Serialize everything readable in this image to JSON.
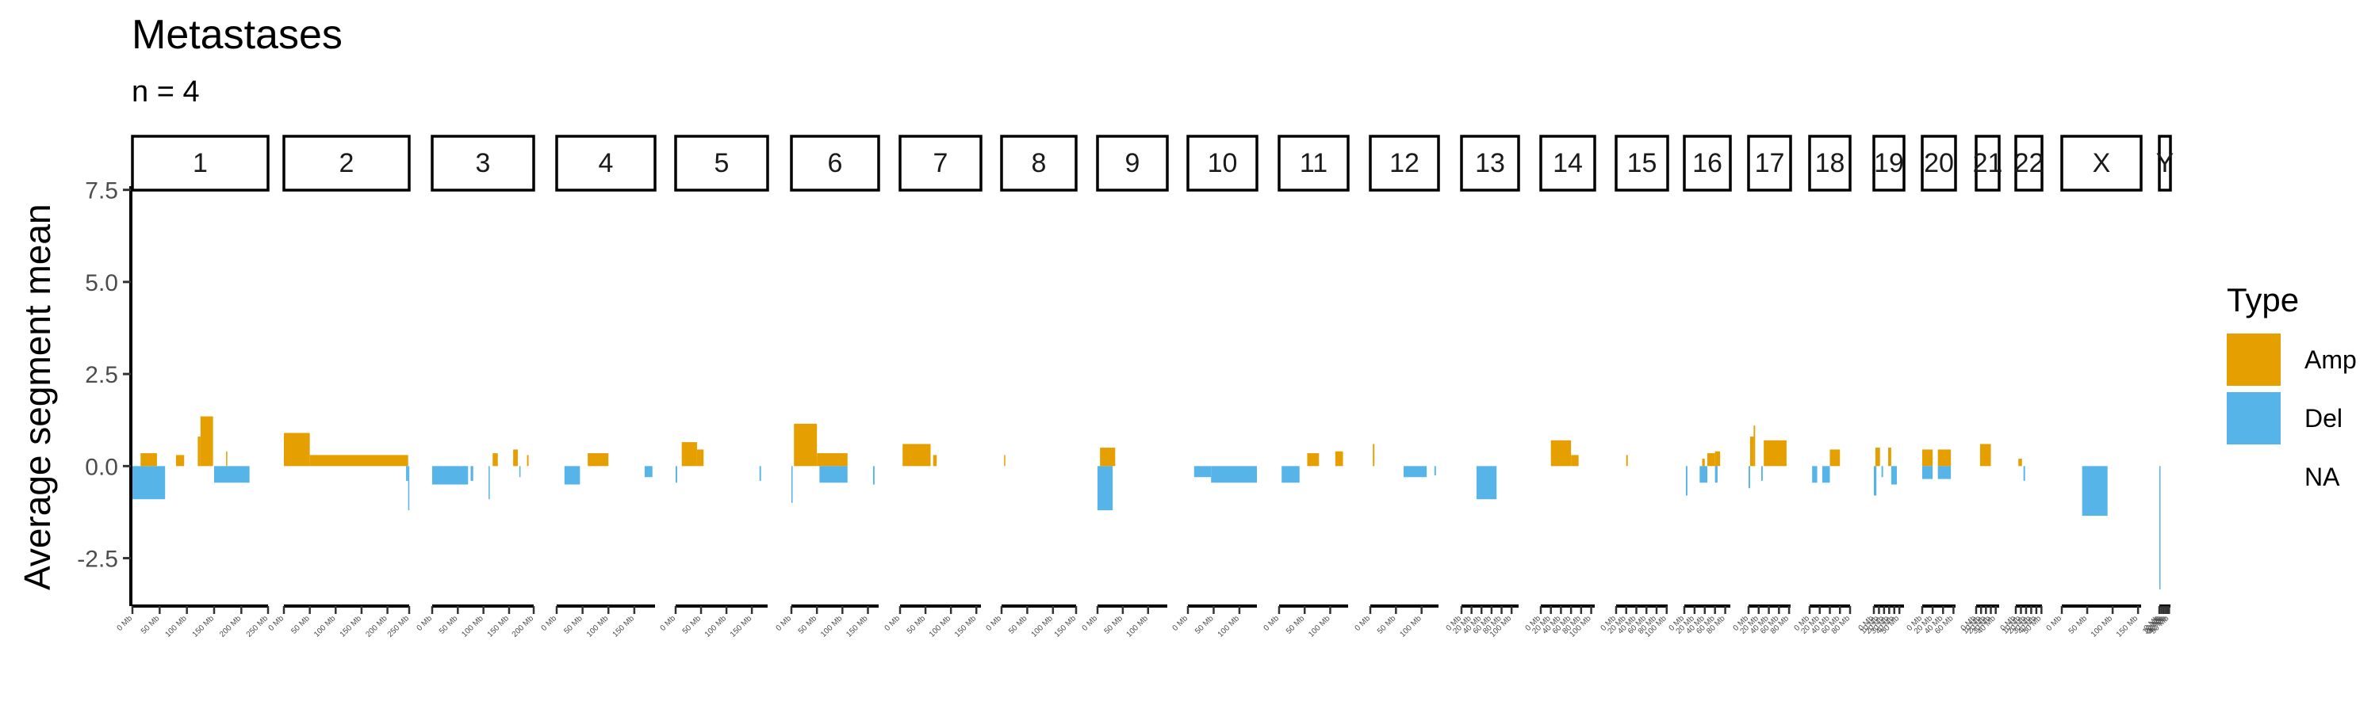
{
  "title": "Metastases",
  "subtitle": "n = 4",
  "colors": {
    "Amp": "#E69F00",
    "Del": "#56B4E9"
  },
  "chart_data": {
    "type": "bar",
    "ylabel": "Average segment mean",
    "ylim": [
      -3.8,
      7.6
    ],
    "yticks": [
      -2.5,
      0.0,
      2.5,
      5.0,
      7.5
    ],
    "yticklabels": [
      "-2.5",
      "0.0",
      "2.5",
      "5.0",
      "7.5"
    ],
    "legend": {
      "title": "Type",
      "entries": [
        "Amp",
        "Del",
        "NA"
      ],
      "position": "right"
    },
    "chromosomes": [
      {
        "name": "1",
        "length_mb": 249,
        "ticks": [
          "0 Mb",
          "50 Mb",
          "100 Mb",
          "150 Mb",
          "200 Mb",
          "250 Mb"
        ],
        "segments": [
          {
            "start": 0,
            "end": 60,
            "value": -0.9,
            "type": "Del"
          },
          {
            "start": 15,
            "end": 45,
            "value": 0.35,
            "type": "Amp"
          },
          {
            "start": 80,
            "end": 95,
            "value": 0.3,
            "type": "Amp"
          },
          {
            "start": 125,
            "end": 148,
            "value": 1.35,
            "type": "Amp"
          },
          {
            "start": 120,
            "end": 125,
            "value": 0.8,
            "type": "Amp"
          },
          {
            "start": 150,
            "end": 215,
            "value": -0.45,
            "type": "Del"
          },
          {
            "start": 172,
            "end": 174,
            "value": 0.4,
            "type": "Amp"
          }
        ]
      },
      {
        "name": "2",
        "length_mb": 242,
        "ticks": [
          "0 Mb",
          "50 Mb",
          "100 Mb",
          "150 Mb",
          "200 Mb",
          "250 Mb"
        ],
        "segments": [
          {
            "start": 0,
            "end": 50,
            "value": 0.9,
            "type": "Amp"
          },
          {
            "start": 50,
            "end": 240,
            "value": 0.3,
            "type": "Amp"
          },
          {
            "start": 240,
            "end": 242,
            "value": -1.2,
            "type": "Del"
          },
          {
            "start": 236,
            "end": 240,
            "value": -0.4,
            "type": "Del"
          }
        ]
      },
      {
        "name": "3",
        "length_mb": 198,
        "ticks": [
          "0 Mb",
          "50 Mb",
          "100 Mb",
          "150 Mb",
          "200 Mb"
        ],
        "segments": [
          {
            "start": 0,
            "end": 70,
            "value": -0.5,
            "type": "Del"
          },
          {
            "start": 75,
            "end": 80,
            "value": -0.4,
            "type": "Del"
          },
          {
            "start": 110,
            "end": 112,
            "value": -0.9,
            "type": "Del"
          },
          {
            "start": 118,
            "end": 128,
            "value": 0.35,
            "type": "Amp"
          },
          {
            "start": 158,
            "end": 167,
            "value": 0.45,
            "type": "Amp"
          },
          {
            "start": 170,
            "end": 172,
            "value": -0.3,
            "type": "Del"
          },
          {
            "start": 185,
            "end": 188,
            "value": 0.3,
            "type": "Amp"
          }
        ]
      },
      {
        "name": "4",
        "length_mb": 190,
        "ticks": [
          "0 Mb",
          "50 Mb",
          "100 Mb",
          "150 Mb"
        ],
        "segments": [
          {
            "start": 15,
            "end": 45,
            "value": -0.5,
            "type": "Del"
          },
          {
            "start": 60,
            "end": 100,
            "value": 0.35,
            "type": "Amp"
          },
          {
            "start": 170,
            "end": 185,
            "value": -0.3,
            "type": "Del"
          }
        ]
      },
      {
        "name": "5",
        "length_mb": 181,
        "ticks": [
          "0 Mb",
          "50 Mb",
          "100 Mb",
          "150 Mb"
        ],
        "segments": [
          {
            "start": 0,
            "end": 3,
            "value": -0.45,
            "type": "Del"
          },
          {
            "start": 12,
            "end": 42,
            "value": 0.65,
            "type": "Amp"
          },
          {
            "start": 42,
            "end": 55,
            "value": 0.45,
            "type": "Amp"
          },
          {
            "start": 165,
            "end": 168,
            "value": -0.4,
            "type": "Del"
          }
        ]
      },
      {
        "name": "6",
        "length_mb": 171,
        "ticks": [
          "0 Mb",
          "50 Mb",
          "100 Mb",
          "150 Mb"
        ],
        "segments": [
          {
            "start": 0,
            "end": 2,
            "value": -1.0,
            "type": "Del"
          },
          {
            "start": 5,
            "end": 50,
            "value": 1.15,
            "type": "Amp"
          },
          {
            "start": 50,
            "end": 110,
            "value": 0.35,
            "type": "Amp"
          },
          {
            "start": 55,
            "end": 110,
            "value": -0.45,
            "type": "Del"
          },
          {
            "start": 160,
            "end": 163,
            "value": -0.5,
            "type": "Del"
          }
        ]
      },
      {
        "name": "7",
        "length_mb": 159,
        "ticks": [
          "0 Mb",
          "50 Mb",
          "100 Mb",
          "150 Mb"
        ],
        "segments": [
          {
            "start": 5,
            "end": 60,
            "value": 0.6,
            "type": "Amp"
          },
          {
            "start": 65,
            "end": 72,
            "value": 0.3,
            "type": "Amp"
          }
        ]
      },
      {
        "name": "8",
        "length_mb": 145,
        "ticks": [
          "0 Mb",
          "50 Mb",
          "100 Mb",
          "150 Mb"
        ],
        "segments": [
          {
            "start": 5,
            "end": 7,
            "value": 0.3,
            "type": "Amp"
          }
        ]
      },
      {
        "name": "9",
        "length_mb": 138,
        "ticks": [
          "0 Mb",
          "50 Mb",
          "100 Mb"
        ],
        "segments": [
          {
            "start": 0,
            "end": 30,
            "value": -1.2,
            "type": "Del"
          },
          {
            "start": 5,
            "end": 35,
            "value": 0.5,
            "type": "Amp"
          }
        ]
      },
      {
        "name": "10",
        "length_mb": 134,
        "ticks": [
          "0 Mb",
          "50 Mb",
          "100 Mb"
        ],
        "segments": [
          {
            "start": 12,
            "end": 45,
            "value": -0.3,
            "type": "Del"
          },
          {
            "start": 45,
            "end": 134,
            "value": -0.45,
            "type": "Del"
          }
        ]
      },
      {
        "name": "11",
        "length_mb": 135,
        "ticks": [
          "0 Mb",
          "50 Mb",
          "100 Mb"
        ],
        "segments": [
          {
            "start": 5,
            "end": 40,
            "value": -0.45,
            "type": "Del"
          },
          {
            "start": 55,
            "end": 78,
            "value": 0.35,
            "type": "Amp"
          },
          {
            "start": 110,
            "end": 125,
            "value": 0.4,
            "type": "Amp"
          }
        ]
      },
      {
        "name": "12",
        "length_mb": 133,
        "ticks": [
          "0 Mb",
          "50 Mb",
          "100 Mb"
        ],
        "segments": [
          {
            "start": 5,
            "end": 8,
            "value": 0.6,
            "type": "Amp"
          },
          {
            "start": 65,
            "end": 110,
            "value": -0.3,
            "type": "Del"
          },
          {
            "start": 125,
            "end": 128,
            "value": -0.25,
            "type": "Del"
          }
        ]
      },
      {
        "name": "13",
        "length_mb": 114,
        "ticks": [
          "0 Mb",
          "20 Mb",
          "40 Mb",
          "60 Mb",
          "80 Mb",
          "100 Mb"
        ],
        "segments": [
          {
            "start": 30,
            "end": 70,
            "value": -0.9,
            "type": "Del"
          }
        ]
      },
      {
        "name": "14",
        "length_mb": 107,
        "ticks": [
          "0 Mb",
          "20 Mb",
          "40 Mb",
          "60 Mb",
          "80 Mb",
          "100 Mb"
        ],
        "segments": [
          {
            "start": 20,
            "end": 60,
            "value": 0.7,
            "type": "Amp"
          },
          {
            "start": 60,
            "end": 75,
            "value": 0.3,
            "type": "Amp"
          }
        ]
      },
      {
        "name": "15",
        "length_mb": 102,
        "ticks": [
          "0 Mb",
          "20 Mb",
          "40 Mb",
          "60 Mb",
          "80 Mb",
          "100 Mb"
        ],
        "segments": [
          {
            "start": 20,
            "end": 23,
            "value": 0.3,
            "type": "Amp"
          }
        ]
      },
      {
        "name": "16",
        "length_mb": 90,
        "ticks": [
          "0 Mb",
          "20 Mb",
          "40 Mb",
          "60 Mb",
          "80 Mb"
        ],
        "segments": [
          {
            "start": 3,
            "end": 6,
            "value": -0.8,
            "type": "Del"
          },
          {
            "start": 30,
            "end": 45,
            "value": -0.45,
            "type": "Del"
          },
          {
            "start": 35,
            "end": 40,
            "value": 0.2,
            "type": "Amp"
          },
          {
            "start": 45,
            "end": 60,
            "value": 0.35,
            "type": "Amp"
          },
          {
            "start": 60,
            "end": 70,
            "value": 0.4,
            "type": "Amp"
          },
          {
            "start": 60,
            "end": 65,
            "value": -0.45,
            "type": "Del"
          }
        ]
      },
      {
        "name": "17",
        "length_mb": 83,
        "ticks": [
          "0 Mb",
          "20 Mb",
          "40 Mb",
          "60 Mb",
          "80 Mb"
        ],
        "segments": [
          {
            "start": 0,
            "end": 3,
            "value": -0.6,
            "type": "Del"
          },
          {
            "start": 3,
            "end": 10,
            "value": 0.8,
            "type": "Amp"
          },
          {
            "start": 10,
            "end": 13,
            "value": 1.1,
            "type": "Amp"
          },
          {
            "start": 25,
            "end": 28,
            "value": -0.4,
            "type": "Del"
          },
          {
            "start": 30,
            "end": 75,
            "value": 0.7,
            "type": "Amp"
          }
        ]
      },
      {
        "name": "18",
        "length_mb": 80,
        "ticks": [
          "0 Mb",
          "20 Mb",
          "40 Mb",
          "60 Mb",
          "80 Mb"
        ],
        "segments": [
          {
            "start": 5,
            "end": 15,
            "value": -0.45,
            "type": "Del"
          },
          {
            "start": 25,
            "end": 40,
            "value": -0.45,
            "type": "Del"
          },
          {
            "start": 40,
            "end": 60,
            "value": 0.45,
            "type": "Amp"
          }
        ]
      },
      {
        "name": "19",
        "length_mb": 59,
        "ticks": [
          "0 Mb",
          "10 Mb",
          "20 Mb",
          "30 Mb",
          "40 Mb",
          "50 Mb"
        ],
        "segments": [
          {
            "start": 0,
            "end": 5,
            "value": -0.8,
            "type": "Del"
          },
          {
            "start": 3,
            "end": 12,
            "value": 0.5,
            "type": "Amp"
          },
          {
            "start": 15,
            "end": 18,
            "value": -0.3,
            "type": "Del"
          },
          {
            "start": 28,
            "end": 34,
            "value": 0.5,
            "type": "Amp"
          },
          {
            "start": 34,
            "end": 45,
            "value": -0.5,
            "type": "Del"
          }
        ]
      },
      {
        "name": "20",
        "length_mb": 64,
        "ticks": [
          "0 Mb",
          "20 Mb",
          "40 Mb",
          "60 Mb"
        ],
        "segments": [
          {
            "start": 0,
            "end": 20,
            "value": 0.45,
            "type": "Amp"
          },
          {
            "start": 0,
            "end": 20,
            "value": -0.35,
            "type": "Del"
          },
          {
            "start": 30,
            "end": 55,
            "value": 0.45,
            "type": "Amp"
          },
          {
            "start": 30,
            "end": 55,
            "value": -0.35,
            "type": "Del"
          }
        ]
      },
      {
        "name": "21",
        "length_mb": 47,
        "ticks": [
          "0 Mb",
          "10 Mb",
          "20 Mb",
          "30 Mb",
          "40 Mb"
        ],
        "segments": [
          {
            "start": 8,
            "end": 30,
            "value": 0.6,
            "type": "Amp"
          }
        ]
      },
      {
        "name": "22",
        "length_mb": 51,
        "ticks": [
          "0 Mb",
          "10 Mb",
          "20 Mb",
          "30 Mb",
          "40 Mb",
          "50 Mb"
        ],
        "segments": [
          {
            "start": 5,
            "end": 12,
            "value": 0.2,
            "type": "Amp"
          },
          {
            "start": 15,
            "end": 18,
            "value": -0.4,
            "type": "Del"
          }
        ]
      },
      {
        "name": "X",
        "length_mb": 156,
        "ticks": [
          "0 Mb",
          "50 Mb",
          "100 Mb",
          "150 Mb"
        ],
        "segments": [
          {
            "start": 40,
            "end": 90,
            "value": -1.35,
            "type": "Del"
          }
        ]
      },
      {
        "name": "Y",
        "length_mb": 57,
        "ticks": [
          "0 Mb",
          "10 Mb",
          "20 Mb",
          "30 Mb",
          "40 Mb",
          "50 Mb"
        ],
        "segments": [
          {
            "start": 0,
            "end": 6,
            "value": -3.35,
            "type": "Del"
          }
        ]
      }
    ]
  }
}
